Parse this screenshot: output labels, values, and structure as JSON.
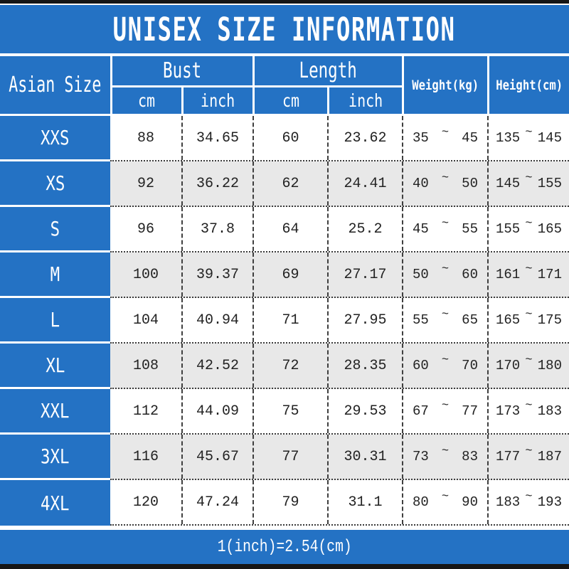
{
  "page": {
    "title_banner": "UNISEX SIZE INFORMATION",
    "note": "1(inch)=2.54(cm)"
  },
  "symbols": {
    "tilde": "~"
  },
  "colors": {
    "accent_blue": "#2472C4",
    "row_alt_gray": "#E8E8E8",
    "frame_black": "#161616",
    "text_dark": "#222222",
    "text_white": "#FFFFFF"
  },
  "header": {
    "size_col": "Asian Size",
    "bust_group": "Bust",
    "length_group": "Length",
    "unit_cm": "cm",
    "unit_inch": "inch",
    "weight_col": "Weight(kg)",
    "height_col": "Height(cm)"
  },
  "chart_data": {
    "type": "table",
    "title": "UNISEX SIZE INFORMATION",
    "columns": [
      "Asian Size",
      "Bust cm",
      "Bust inch",
      "Length cm",
      "Length inch",
      "Weight(kg)",
      "Height(cm)"
    ],
    "note": "1(inch)=2.54(cm)",
    "rows": [
      {
        "size": "XXS",
        "bust_cm": "88",
        "bust_inch": "34.65",
        "length_cm": "60",
        "length_inch": "23.62",
        "weight_min": "35",
        "weight_max": "45",
        "height_min": "135",
        "height_max": "145"
      },
      {
        "size": "XS",
        "bust_cm": "92",
        "bust_inch": "36.22",
        "length_cm": "62",
        "length_inch": "24.41",
        "weight_min": "40",
        "weight_max": "50",
        "height_min": "145",
        "height_max": "155"
      },
      {
        "size": "S",
        "bust_cm": "96",
        "bust_inch": "37.8",
        "length_cm": "64",
        "length_inch": "25.2",
        "weight_min": "45",
        "weight_max": "55",
        "height_min": "155",
        "height_max": "165"
      },
      {
        "size": "M",
        "bust_cm": "100",
        "bust_inch": "39.37",
        "length_cm": "69",
        "length_inch": "27.17",
        "weight_min": "50",
        "weight_max": "60",
        "height_min": "161",
        "height_max": "171"
      },
      {
        "size": "L",
        "bust_cm": "104",
        "bust_inch": "40.94",
        "length_cm": "71",
        "length_inch": "27.95",
        "weight_min": "55",
        "weight_max": "65",
        "height_min": "165",
        "height_max": "175"
      },
      {
        "size": "XL",
        "bust_cm": "108",
        "bust_inch": "42.52",
        "length_cm": "72",
        "length_inch": "28.35",
        "weight_min": "60",
        "weight_max": "70",
        "height_min": "170",
        "height_max": "180"
      },
      {
        "size": "XXL",
        "bust_cm": "112",
        "bust_inch": "44.09",
        "length_cm": "75",
        "length_inch": "29.53",
        "weight_min": "67",
        "weight_max": "77",
        "height_min": "173",
        "height_max": "183"
      },
      {
        "size": "3XL",
        "bust_cm": "116",
        "bust_inch": "45.67",
        "length_cm": "77",
        "length_inch": "30.31",
        "weight_min": "73",
        "weight_max": "83",
        "height_min": "177",
        "height_max": "187"
      },
      {
        "size": "4XL",
        "bust_cm": "120",
        "bust_inch": "47.24",
        "length_cm": "79",
        "length_inch": "31.1",
        "weight_min": "80",
        "weight_max": "90",
        "height_min": "183",
        "height_max": "193"
      }
    ]
  }
}
